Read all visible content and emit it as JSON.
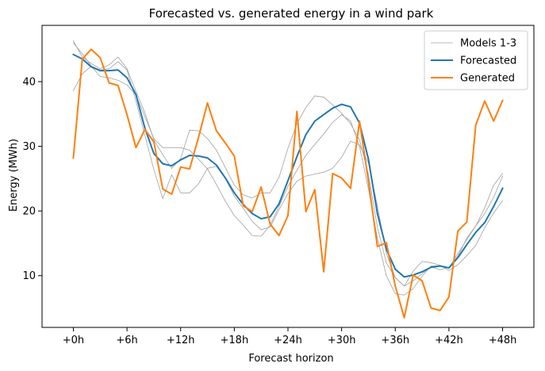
{
  "chart_data": {
    "type": "line",
    "title": "Forecasted vs. generated energy in a wind park",
    "xlabel": "Forecast horizon",
    "ylabel": "Energy (MWh)",
    "x": [
      0,
      1,
      2,
      3,
      4,
      5,
      6,
      7,
      8,
      9,
      10,
      11,
      12,
      13,
      14,
      15,
      16,
      17,
      18,
      19,
      20,
      21,
      22,
      23,
      24,
      25,
      26,
      27,
      28,
      29,
      30,
      31,
      32,
      33,
      34,
      35,
      36,
      37,
      38,
      39,
      40,
      41,
      42,
      43,
      44,
      45,
      46,
      47,
      48
    ],
    "x_ticks": [
      {
        "x": 0,
        "label": "+0h"
      },
      {
        "x": 6,
        "label": "+6h"
      },
      {
        "x": 12,
        "label": "+12h"
      },
      {
        "x": 18,
        "label": "+18h"
      },
      {
        "x": 24,
        "label": "+24h"
      },
      {
        "x": 30,
        "label": "+30h"
      },
      {
        "x": 36,
        "label": "+36h"
      },
      {
        "x": 42,
        "label": "+42h"
      },
      {
        "x": 48,
        "label": "+48h"
      }
    ],
    "y_ticks": [
      10,
      20,
      30,
      40
    ],
    "xlim": [
      -3.5,
      51.5
    ],
    "ylim": [
      2.0,
      48.7
    ],
    "grid": false,
    "legend": "top-right",
    "colors": {
      "models": "#a0a0a0",
      "forecasted": "#1f77b4",
      "generated": "#ff7f0e",
      "axes": "#000000",
      "legend_border": "#cccccc"
    },
    "series": [
      {
        "name": "Models 1-3",
        "role": "models",
        "values": [
          46.0,
          44.3,
          42.4,
          40.8,
          40.6,
          40.2,
          39.5,
          37.9,
          34.6,
          31.2,
          29.8,
          29.8,
          29.8,
          29.4,
          28.0,
          26.5,
          24.1,
          21.5,
          19.3,
          17.8,
          16.2,
          16.1,
          17.8,
          20.7,
          23.8,
          26.3,
          28.6,
          30.3,
          31.9,
          33.7,
          34.9,
          33.9,
          30.0,
          23.4,
          15.8,
          10.0,
          7.2,
          7.0,
          8.0,
          9.9,
          11.5,
          11.5,
          11.2,
          13.4,
          15.6,
          17.7,
          20.5,
          24.0,
          25.8
        ]
      },
      {
        "name": "",
        "role": "models",
        "values": [
          38.6,
          41.2,
          42.4,
          41.8,
          42.0,
          43.1,
          41.8,
          37.0,
          31.7,
          26.4,
          21.9,
          25.6,
          22.8,
          22.8,
          24.2,
          26.6,
          26.9,
          25.0,
          22.3,
          20.4,
          18.4,
          17.1,
          17.5,
          20.2,
          22.7,
          24.6,
          25.4,
          25.7,
          26.0,
          26.6,
          28.3,
          30.8,
          30.2,
          27.4,
          20.8,
          13.5,
          9.7,
          8.4,
          10.7,
          12.2,
          12.0,
          11.6,
          10.8,
          11.7,
          13.1,
          14.7,
          17.4,
          19.7,
          21.6
        ]
      },
      {
        "name": "",
        "role": "models",
        "values": [
          46.3,
          43.8,
          42.8,
          42.0,
          42.6,
          43.8,
          42.0,
          38.5,
          35.2,
          31.0,
          28.7,
          26.6,
          28.1,
          32.5,
          32.4,
          31.2,
          29.4,
          26.7,
          24.0,
          22.5,
          22.0,
          22.8,
          22.8,
          25.2,
          29.7,
          33.5,
          36.0,
          37.8,
          37.6,
          36.4,
          35.1,
          33.5,
          31.0,
          25.7,
          17.5,
          12.0,
          9.7,
          8.4,
          9.2,
          10.3,
          11.4,
          10.9,
          11.3,
          13.0,
          15.8,
          17.7,
          19.6,
          22.1,
          25.4
        ]
      },
      {
        "name": "Forecasted",
        "role": "forecasted",
        "values": [
          44.2,
          43.5,
          42.3,
          41.7,
          41.7,
          41.8,
          40.6,
          38.0,
          32.8,
          28.9,
          27.3,
          27.0,
          27.9,
          28.6,
          28.5,
          28.2,
          27.1,
          25.1,
          22.8,
          21.0,
          19.6,
          18.8,
          19.1,
          21.1,
          24.7,
          28.4,
          31.8,
          33.9,
          34.9,
          35.9,
          36.5,
          36.1,
          33.6,
          28.0,
          19.6,
          14.1,
          11.0,
          9.8,
          10.1,
          10.6,
          11.3,
          11.5,
          11.2,
          12.8,
          14.8,
          16.7,
          18.2,
          20.7,
          23.5
        ]
      },
      {
        "name": "Generated",
        "role": "generated",
        "values": [
          28.2,
          43.5,
          45.0,
          43.7,
          39.8,
          39.4,
          34.9,
          29.8,
          32.6,
          30.7,
          23.4,
          22.6,
          26.8,
          26.5,
          31.4,
          36.7,
          32.4,
          30.5,
          28.5,
          20.8,
          19.9,
          23.7,
          18.0,
          16.2,
          19.3,
          35.4,
          19.9,
          23.3,
          10.6,
          25.8,
          25.1,
          23.5,
          33.9,
          24.6,
          14.5,
          15.1,
          8.4,
          3.5,
          10.1,
          9.2,
          5.0,
          4.6,
          6.7,
          16.9,
          18.3,
          33.3,
          37.0,
          33.9,
          37.1
        ]
      }
    ]
  }
}
